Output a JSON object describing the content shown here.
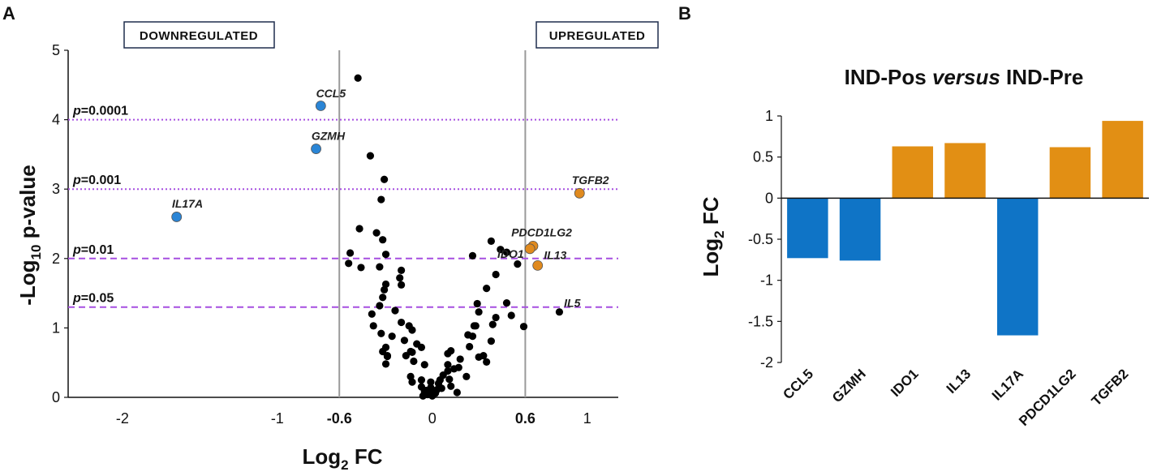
{
  "panel_a_label": "A",
  "panel_b_label": "B",
  "left_box_label": "DOWNREGULATED",
  "right_box_label": "UPREGULATED",
  "colors": {
    "down": "#2a85d6",
    "up": "#e08a1e",
    "neutral": "#000000",
    "threshold_line": "#a64fe0",
    "fc_line": "#9a9a9a",
    "bar_down": "#0f74c6",
    "bar_up": "#e28f14"
  },
  "chart_data": [
    {
      "type": "scatter",
      "title": "",
      "xlabel": "Log2 FC",
      "xlabel_main": "Log",
      "xlabel_sub": "2",
      "xlabel_rest": " FC",
      "ylabel_main": "-Log",
      "ylabel_sub": "10",
      "ylabel_rest": " p-value",
      "xlim": [
        -2.35,
        1.2
      ],
      "ylim": [
        0,
        5
      ],
      "x_ticks": [
        {
          "v": -2,
          "label": "-2",
          "bold": false
        },
        {
          "v": -1,
          "label": "-1",
          "bold": false
        },
        {
          "v": -0.6,
          "label": "-0.6",
          "bold": true
        },
        {
          "v": 0,
          "label": "0",
          "bold": false
        },
        {
          "v": 0.6,
          "label": "0.6",
          "bold": true
        },
        {
          "v": 1,
          "label": "1",
          "bold": false
        }
      ],
      "y_ticks": [
        {
          "v": 0,
          "label": "0"
        },
        {
          "v": 1,
          "label": "1"
        },
        {
          "v": 2,
          "label": "2"
        },
        {
          "v": 3,
          "label": "3"
        },
        {
          "v": 4,
          "label": "4"
        },
        {
          "v": 5,
          "label": "5"
        }
      ],
      "fc_lines": [
        -0.6,
        0.6
      ],
      "thresholds": [
        {
          "y": 4,
          "style": "dotted",
          "p_label": "p",
          "eq_label": "=0.0001"
        },
        {
          "y": 3,
          "style": "dotted",
          "p_label": "p",
          "eq_label": "=0.001"
        },
        {
          "y": 2,
          "style": "dashed",
          "p_label": "p",
          "eq_label": "=0.01"
        },
        {
          "y": 1.3,
          "style": "dashed",
          "p_label": "p",
          "eq_label": "=0.05"
        }
      ],
      "highlighted": [
        {
          "gene": "CCL5",
          "x": -0.72,
          "y": 4.2,
          "group": "down",
          "lx": -0.75,
          "ly": 4.38
        },
        {
          "gene": "GZMH",
          "x": -0.75,
          "y": 3.58,
          "group": "down",
          "lx": -0.78,
          "ly": 3.77
        },
        {
          "gene": "IL17A",
          "x": -1.65,
          "y": 2.6,
          "group": "down",
          "lx": -1.68,
          "ly": 2.79
        },
        {
          "gene": "TGFB2",
          "x": 0.95,
          "y": 2.94,
          "group": "up",
          "lx": 0.9,
          "ly": 3.13
        },
        {
          "gene": "PDCD1LG2",
          "x": 0.65,
          "y": 2.18,
          "group": "up",
          "lx": 0.51,
          "ly": 2.38
        },
        {
          "gene": "IDO1",
          "x": 0.63,
          "y": 2.14,
          "group": "up",
          "lx": 0.42,
          "ly": 2.07
        },
        {
          "gene": "IL13",
          "x": 0.68,
          "y": 1.9,
          "group": "up",
          "lx": 0.72,
          "ly": 2.05
        },
        {
          "gene": "IL5",
          "x": 0.82,
          "y": 1.23,
          "group": "neutral",
          "lx": 0.85,
          "ly": 1.36
        }
      ],
      "points": [
        [
          -0.48,
          4.6
        ],
        [
          -0.4,
          3.48
        ],
        [
          -0.31,
          3.14
        ],
        [
          -0.33,
          2.85
        ],
        [
          -0.47,
          2.43
        ],
        [
          -0.36,
          2.37
        ],
        [
          -0.32,
          2.27
        ],
        [
          -0.53,
          2.08
        ],
        [
          -0.54,
          1.93
        ],
        [
          -0.46,
          1.87
        ],
        [
          -0.3,
          2.06
        ],
        [
          -0.34,
          1.88
        ],
        [
          -0.2,
          1.83
        ],
        [
          -0.21,
          1.72
        ],
        [
          -0.3,
          1.63
        ],
        [
          -0.31,
          1.55
        ],
        [
          -0.2,
          1.62
        ],
        [
          -0.32,
          1.44
        ],
        [
          -0.34,
          1.32
        ],
        [
          -0.24,
          1.25
        ],
        [
          -0.39,
          1.2
        ],
        [
          -0.38,
          1.03
        ],
        [
          -0.2,
          1.08
        ],
        [
          -0.15,
          1.03
        ],
        [
          -0.13,
          0.97
        ],
        [
          -0.33,
          0.92
        ],
        [
          -0.26,
          0.88
        ],
        [
          -0.18,
          0.82
        ],
        [
          -0.1,
          0.77
        ],
        [
          -0.3,
          0.72
        ],
        [
          -0.14,
          0.66
        ],
        [
          -0.29,
          0.6
        ],
        [
          -0.13,
          0.65
        ],
        [
          -0.17,
          0.6
        ],
        [
          -0.32,
          0.66
        ],
        [
          -0.07,
          0.72
        ],
        [
          -0.29,
          0.59
        ],
        [
          -0.3,
          0.48
        ],
        [
          -0.12,
          0.52
        ],
        [
          -0.05,
          0.47
        ],
        [
          -0.14,
          0.3
        ],
        [
          -0.13,
          0.22
        ],
        [
          -0.07,
          0.25
        ],
        [
          -0.07,
          0.15
        ],
        [
          -0.04,
          0.1
        ],
        [
          -0.05,
          0.08
        ],
        [
          -0.05,
          0.05
        ],
        [
          -0.06,
          0.02
        ],
        [
          -0.03,
          0.04
        ],
        [
          -0.02,
          0.1
        ],
        [
          -0.01,
          0.14
        ],
        [
          -0.01,
          0.22
        ],
        [
          -0.03,
          0.07
        ],
        [
          0.0,
          0.02
        ],
        [
          0.01,
          0.05
        ],
        [
          0.02,
          0.06
        ],
        [
          0.03,
          0.11
        ],
        [
          0.04,
          0.2
        ],
        [
          0.05,
          0.25
        ],
        [
          0.06,
          0.13
        ],
        [
          0.07,
          0.32
        ],
        [
          0.1,
          0.38
        ],
        [
          0.1,
          0.47
        ],
        [
          0.1,
          0.63
        ],
        [
          0.12,
          0.67
        ],
        [
          0.11,
          0.26
        ],
        [
          0.12,
          0.16
        ],
        [
          0.14,
          0.41
        ],
        [
          0.17,
          0.43
        ],
        [
          0.22,
          0.3
        ],
        [
          0.16,
          0.07
        ],
        [
          0.18,
          0.55
        ],
        [
          0.23,
          0.9
        ],
        [
          0.24,
          0.73
        ],
        [
          0.26,
          0.88
        ],
        [
          0.27,
          1.03
        ],
        [
          0.28,
          1.03
        ],
        [
          0.3,
          1.23
        ],
        [
          0.3,
          0.58
        ],
        [
          0.33,
          0.6
        ],
        [
          0.35,
          0.51
        ],
        [
          0.38,
          0.81
        ],
        [
          0.39,
          1.05
        ],
        [
          0.41,
          1.15
        ],
        [
          0.35,
          1.57
        ],
        [
          0.29,
          1.35
        ],
        [
          0.26,
          2.04
        ],
        [
          0.38,
          2.25
        ],
        [
          0.41,
          1.77
        ],
        [
          0.48,
          2.09
        ],
        [
          0.48,
          1.36
        ],
        [
          0.51,
          1.18
        ],
        [
          0.55,
          1.92
        ],
        [
          0.59,
          1.02
        ],
        [
          0.44,
          2.13
        ]
      ]
    },
    {
      "type": "bar",
      "title_part1": "IND-Pos ",
      "title_part2": "versus",
      "title_part3": " IND-Pre",
      "xlabel": "",
      "ylabel_main": "Log",
      "ylabel_sub": "2",
      "ylabel_rest": " FC",
      "ylim": [
        -2,
        1
      ],
      "y_ticks": [
        {
          "v": 1,
          "label": "1"
        },
        {
          "v": 0.5,
          "label": "0.5"
        },
        {
          "v": 0,
          "label": "0"
        },
        {
          "v": -0.5,
          "label": "-0.5"
        },
        {
          "v": -1,
          "label": "-1"
        },
        {
          "v": -1.5,
          "label": "-1.5"
        },
        {
          "v": -2,
          "label": "-2"
        }
      ],
      "categories": [
        "CCL5",
        "GZMH",
        "IDO1",
        "IL13",
        "IL17A",
        "PDCD1LG2",
        "TGFB2"
      ],
      "values": [
        -0.73,
        -0.76,
        0.63,
        0.67,
        -1.67,
        0.62,
        0.94
      ]
    }
  ]
}
